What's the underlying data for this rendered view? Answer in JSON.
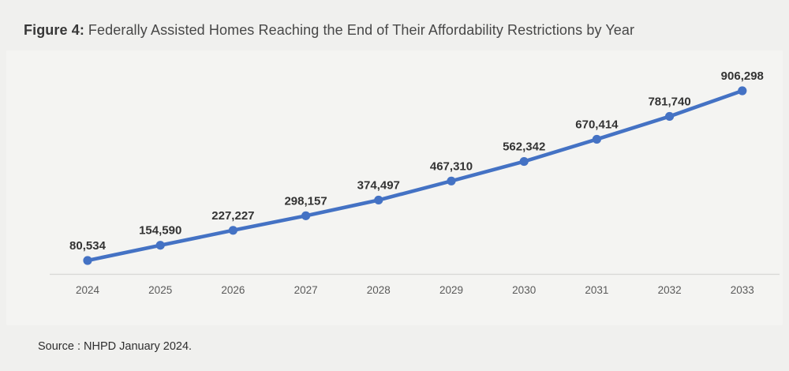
{
  "figure": {
    "title_prefix": "Figure 4:",
    "title_text": "Federally Assisted Homes Reaching the End of Their Affordability Restrictions by Year",
    "source": "Source : NHPD January 2024."
  },
  "colors": {
    "background": "#f0f0ee",
    "line": "#4472c4",
    "marker": "#4472c4",
    "data_label": "#333333",
    "axis_line": "#d8d8d5",
    "tick_label": "#5a5a5a",
    "title": "#474747",
    "source_text": "#2e2e2e"
  },
  "chart_data": {
    "type": "line",
    "title": "Federally Assisted Homes Reaching the End of Their Affordability Restrictions by Year",
    "categories": [
      "2024",
      "2025",
      "2026",
      "2027",
      "2028",
      "2029",
      "2030",
      "2031",
      "2032",
      "2033"
    ],
    "values": [
      80534,
      154590,
      227227,
      298157,
      374497,
      467310,
      562342,
      670414,
      781740,
      906298
    ],
    "labels": [
      "80,534",
      "154,590",
      "227,227",
      "298,157",
      "374,497",
      "467,310",
      "562,342",
      "670,414",
      "781,740",
      "906,298"
    ],
    "xlabel": "",
    "ylabel": "",
    "data_labels_shown": true,
    "legend": false,
    "grid": false,
    "y_axis_shown": false
  }
}
